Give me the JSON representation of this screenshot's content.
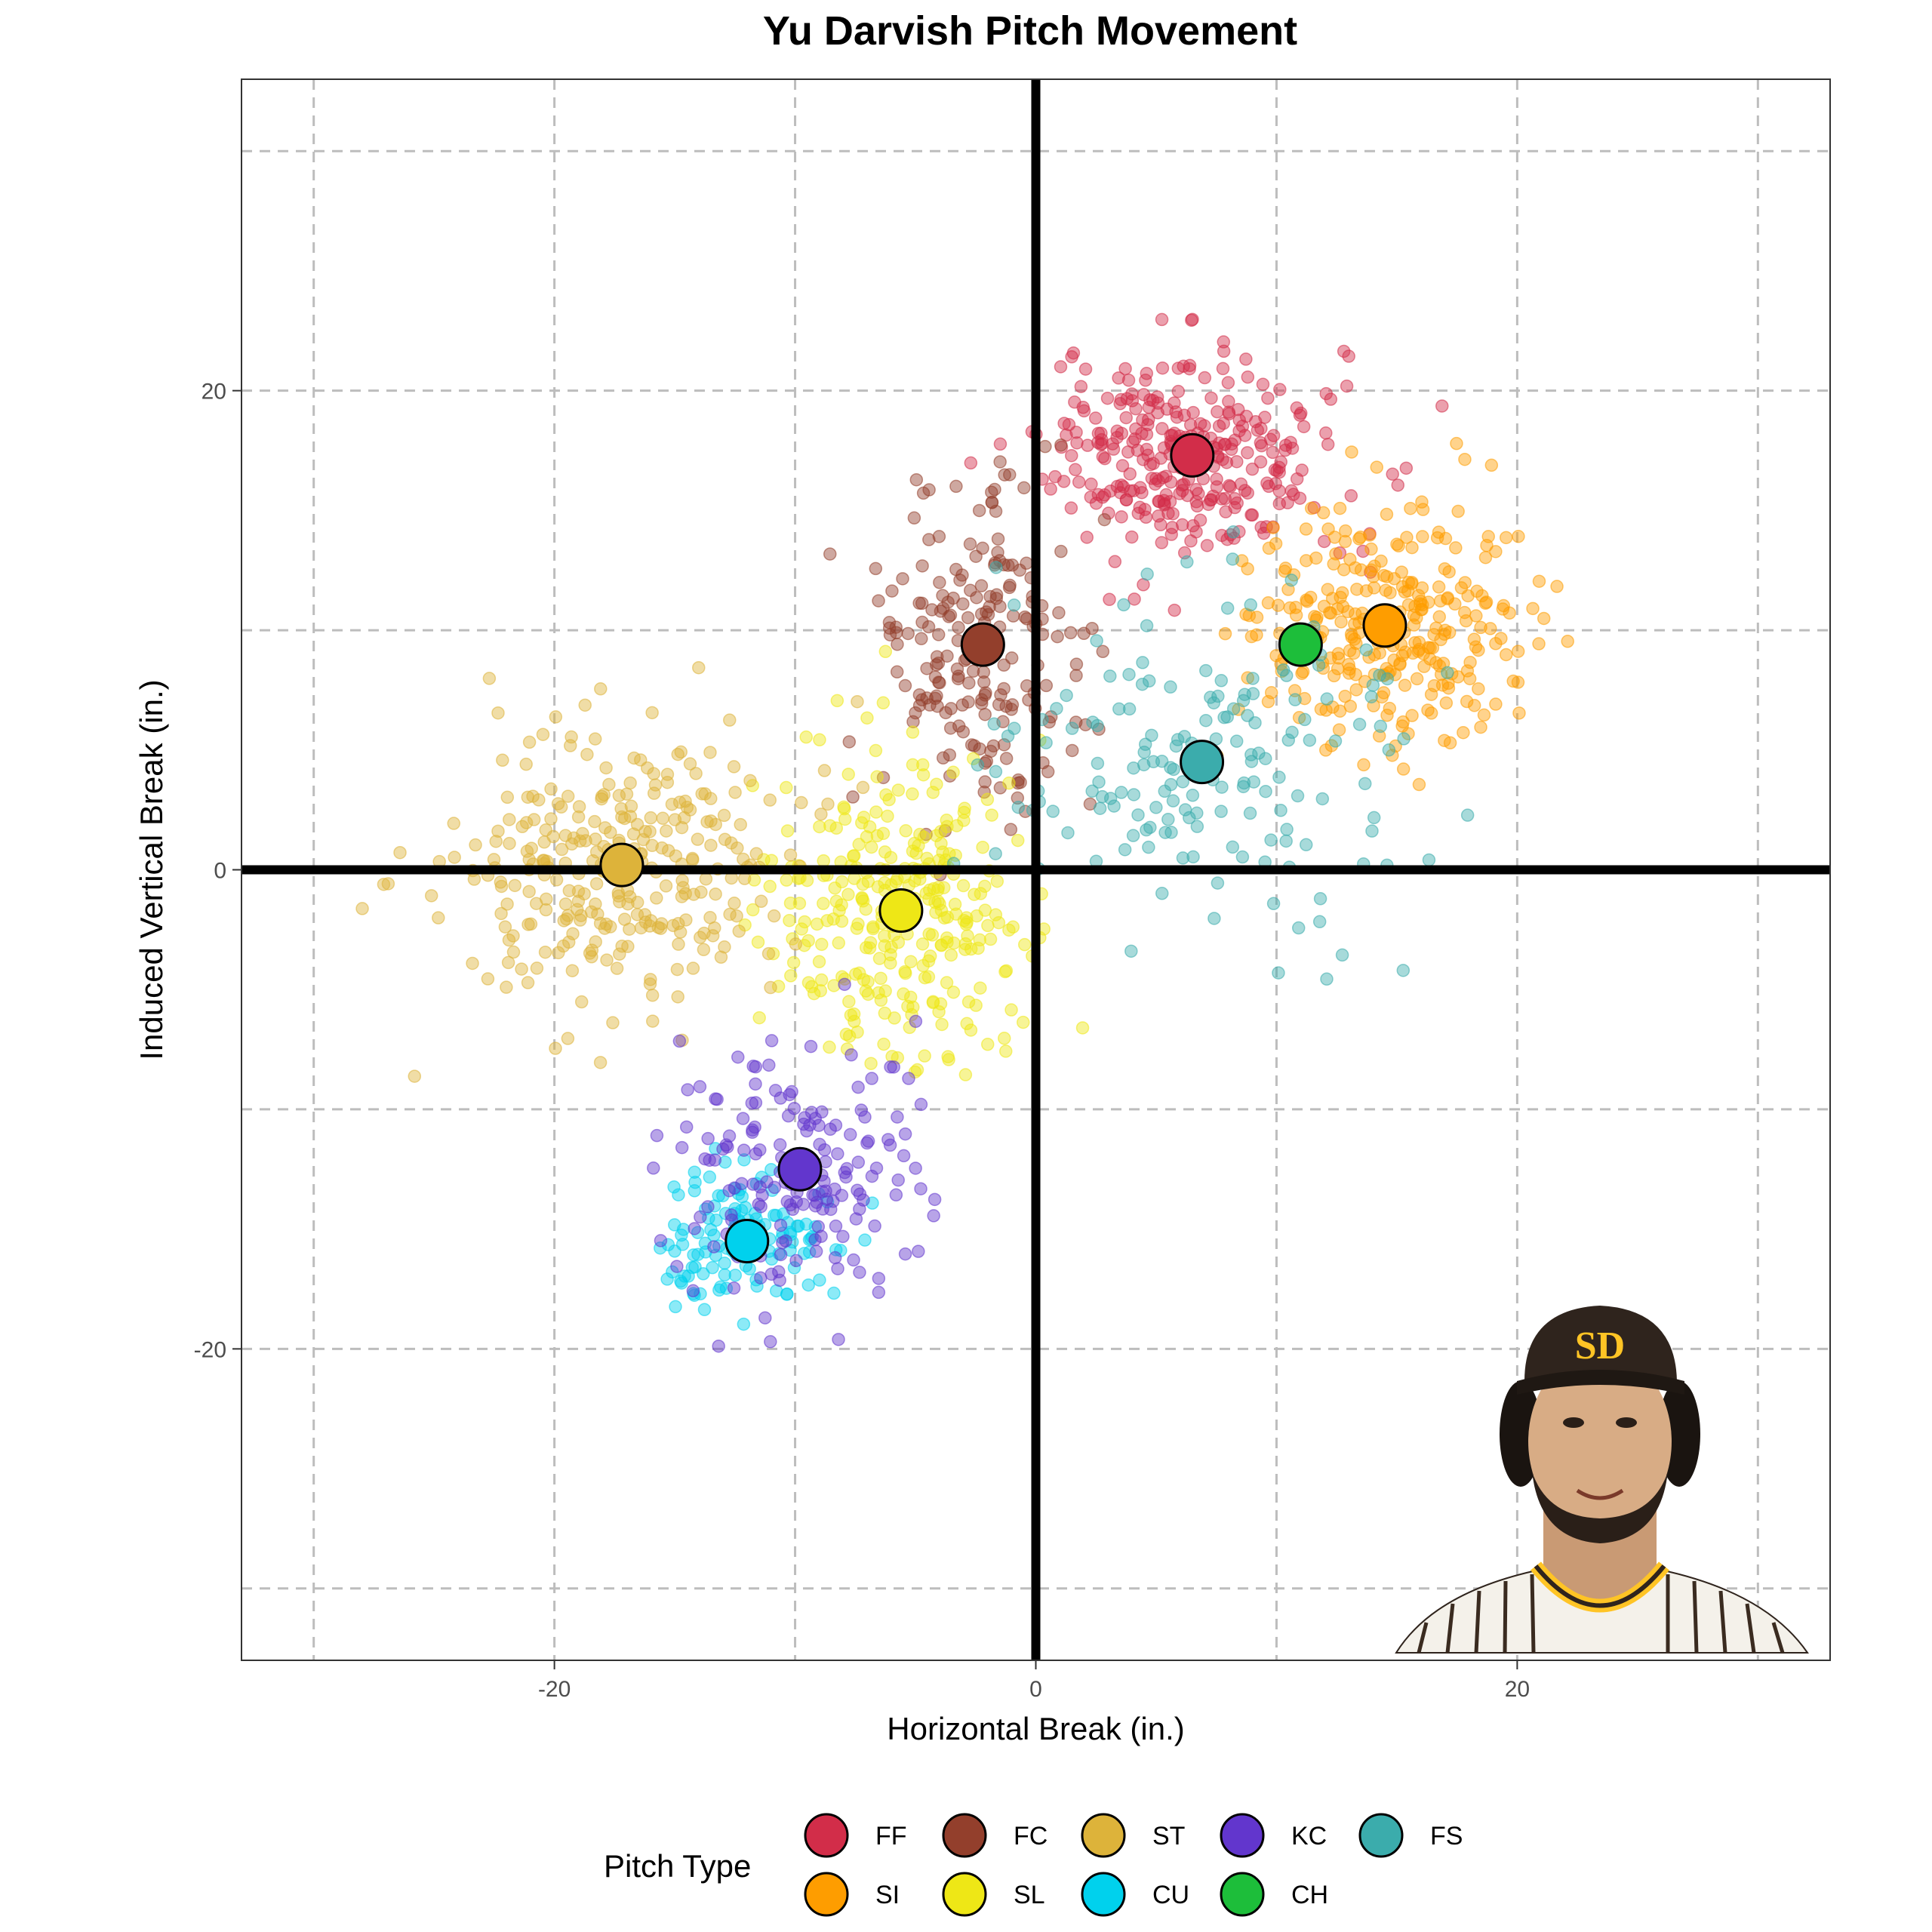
{
  "chart_data": {
    "type": "scatter",
    "title": "Yu Darvish Pitch Movement",
    "xlabel": "Horizontal Break (in.)",
    "ylabel": "Induced Vertical Break (in.)",
    "xlim": [
      -33,
      33
    ],
    "ylim": [
      -33,
      33
    ],
    "xticks": [
      -20,
      0,
      20
    ],
    "yticks": [
      -20,
      0,
      20
    ],
    "grid": "dashed, every 10",
    "legend": {
      "title": "Pitch Type",
      "position": "bottom"
    },
    "series": [
      {
        "name": "FF",
        "color": "#D22D49",
        "mean": [
          6.5,
          17.3
        ],
        "sd": [
          3.0,
          2.1
        ],
        "n": 320
      },
      {
        "name": "SI",
        "color": "#FE9D00",
        "mean": [
          14.5,
          10.2
        ],
        "sd": [
          2.9,
          2.6
        ],
        "n": 300
      },
      {
        "name": "FC",
        "color": "#933F2C",
        "mean": [
          -2.2,
          9.4
        ],
        "sd": [
          2.3,
          3.4
        ],
        "n": 200
      },
      {
        "name": "SL",
        "color": "#EEE716",
        "mean": [
          -5.6,
          -1.7
        ],
        "sd": [
          2.6,
          3.3
        ],
        "n": 300
      },
      {
        "name": "ST",
        "color": "#DDB33A",
        "mean": [
          -17.2,
          0.2
        ],
        "sd": [
          3.3,
          3.0
        ],
        "n": 300
      },
      {
        "name": "CU",
        "color": "#00D1ED",
        "mean": [
          -12.0,
          -15.5
        ],
        "sd": [
          1.9,
          1.5
        ],
        "n": 120
      },
      {
        "name": "KC",
        "color": "#6236CD",
        "mean": [
          -9.8,
          -12.5
        ],
        "sd": [
          2.6,
          2.8
        ],
        "n": 170
      },
      {
        "name": "CH",
        "color": "#1DBE3A",
        "mean": [
          11.0,
          9.4
        ],
        "sd": [
          0.0,
          0.0
        ],
        "n": 1
      },
      {
        "name": "FS",
        "color": "#3BACAC",
        "mean": [
          6.9,
          4.5
        ],
        "sd": [
          4.8,
          3.6
        ],
        "n": 170
      }
    ],
    "legend_rows": [
      [
        "FF",
        "FC",
        "ST",
        "KC",
        "FS"
      ],
      [
        "SI",
        "SL",
        "CU",
        "CH"
      ]
    ]
  },
  "logo_fallback": "SD"
}
